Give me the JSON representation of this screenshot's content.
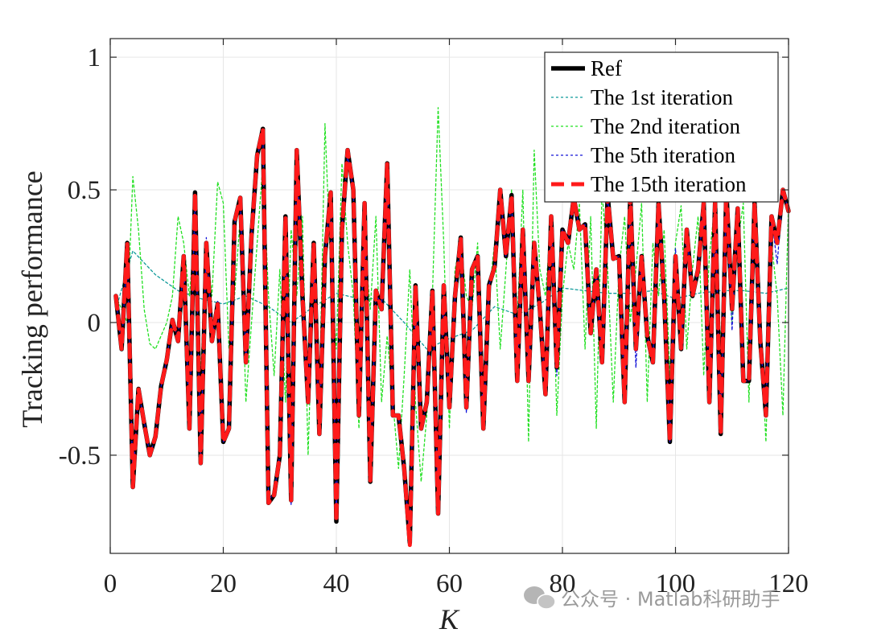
{
  "chart_data": {
    "type": "line",
    "xlabel": "K",
    "ylabel": "Tracking performance",
    "xlim": [
      0,
      120
    ],
    "ylim": [
      -0.87,
      1.07
    ],
    "xticks": [
      0,
      20,
      40,
      60,
      80,
      100,
      120
    ],
    "yticks": [
      -0.5,
      0,
      0.5,
      1
    ],
    "ytick_labels": [
      "-0.5",
      "0",
      "0.5",
      "1"
    ],
    "grid": true,
    "legend_position": "top-right",
    "series": [
      {
        "name": "Ref",
        "color": "#000000",
        "style": "solid",
        "x": [
          1,
          2,
          3,
          4,
          5,
          6,
          7,
          8,
          9,
          10,
          11,
          12,
          13,
          14,
          15,
          16,
          17,
          18,
          19,
          20,
          21,
          22,
          23,
          24,
          25,
          26,
          27,
          28,
          29,
          30,
          31,
          32,
          33,
          34,
          35,
          36,
          37,
          38,
          39,
          40,
          41,
          42,
          43,
          44,
          45,
          46,
          47,
          48,
          49,
          50,
          51,
          52,
          53,
          54,
          55,
          56,
          57,
          58,
          59,
          60,
          61,
          62,
          63,
          64,
          65,
          66,
          67,
          68,
          69,
          70,
          71,
          72,
          73,
          74,
          75,
          76,
          77,
          78,
          79,
          80,
          81,
          82,
          83,
          84,
          85,
          86,
          87,
          88,
          89,
          90,
          91,
          92,
          93,
          94,
          95,
          96,
          97,
          98,
          99,
          100,
          101,
          102,
          103,
          104,
          105,
          106,
          107,
          108,
          109,
          110,
          111,
          112,
          113,
          114,
          115,
          116,
          117,
          118,
          119,
          120
        ],
        "y": [
          0.1,
          -0.1,
          0.3,
          -0.62,
          -0.25,
          -0.38,
          -0.5,
          -0.43,
          -0.24,
          -0.14,
          0.01,
          -0.07,
          0.25,
          -0.4,
          0.49,
          -0.53,
          0.3,
          -0.07,
          0.07,
          -0.45,
          -0.4,
          0.38,
          0.47,
          -0.15,
          0.33,
          0.63,
          0.73,
          -0.68,
          -0.65,
          -0.5,
          0.4,
          -0.67,
          0.65,
          0.1,
          -0.3,
          0.3,
          -0.42,
          0.25,
          0.49,
          -0.75,
          0.35,
          0.65,
          0.5,
          -0.35,
          0.45,
          -0.6,
          0.12,
          0.05,
          0.6,
          -0.35,
          -0.35,
          -0.55,
          -0.83,
          0.14,
          -0.4,
          -0.3,
          0.12,
          -0.72,
          0.14,
          -0.32,
          0.1,
          0.32,
          -0.32,
          0.2,
          0.25,
          -0.4,
          0.14,
          0.21,
          0.5,
          0.25,
          0.48,
          -0.22,
          0.35,
          -0.22,
          0.3,
          0.05,
          -0.27,
          0.4,
          -0.17,
          0.35,
          0.3,
          0.47,
          0.35,
          0.37,
          -0.04,
          0.2,
          -0.15,
          0.48,
          0.24,
          0.25,
          -0.3,
          0.48,
          -0.1,
          0.25,
          -0.05,
          -0.15,
          0.45,
          0.1,
          -0.45,
          0.25,
          -0.1,
          0.35,
          0.1,
          0.2,
          0.45,
          -0.3,
          0.45,
          -0.42,
          0.5,
          0.05,
          0.43,
          -0.22,
          -0.22,
          0.45,
          -0.07,
          -0.35,
          0.4,
          0.3,
          0.5,
          0.42
        ]
      },
      {
        "name": "The 1st iteration",
        "color": "#0e9a9a",
        "style": "dotted",
        "x": [
          1,
          4,
          8,
          12,
          16,
          20,
          24,
          28,
          32,
          36,
          40,
          44,
          48,
          52,
          56,
          60,
          64,
          68,
          72,
          76,
          80,
          84,
          88,
          92,
          96,
          100,
          104,
          108,
          112,
          116,
          120
        ],
        "y": [
          0.05,
          0.27,
          0.18,
          0.12,
          0.09,
          0.07,
          0.1,
          0.06,
          0.0,
          0.06,
          0.11,
          0.09,
          0.09,
          0.0,
          -0.1,
          -0.06,
          -0.03,
          0.06,
          0.03,
          0.07,
          0.13,
          0.12,
          0.11,
          0.11,
          0.12,
          0.09,
          0.11,
          0.12,
          0.12,
          0.11,
          0.13
        ]
      },
      {
        "name": "The 2nd iteration",
        "color": "#22e022",
        "style": "dotted",
        "x": [
          1,
          2,
          3,
          4,
          5,
          6,
          7,
          8,
          9,
          10,
          11,
          12,
          13,
          14,
          15,
          16,
          17,
          18,
          19,
          20,
          21,
          22,
          23,
          24,
          25,
          26,
          27,
          28,
          29,
          30,
          31,
          32,
          33,
          34,
          35,
          36,
          37,
          38,
          39,
          40,
          41,
          42,
          43,
          44,
          45,
          46,
          47,
          48,
          49,
          50,
          51,
          52,
          53,
          54,
          55,
          56,
          57,
          58,
          59,
          60,
          61,
          62,
          63,
          64,
          65,
          66,
          67,
          68,
          69,
          70,
          71,
          72,
          73,
          74,
          75,
          76,
          77,
          78,
          79,
          80,
          81,
          82,
          83,
          84,
          85,
          86,
          87,
          88,
          89,
          90,
          91,
          92,
          93,
          94,
          95,
          96,
          97,
          98,
          99,
          100,
          101,
          102,
          103,
          104,
          105,
          106,
          107,
          108,
          109,
          110,
          111,
          112,
          113,
          114,
          115,
          116,
          117,
          118,
          119,
          120
        ],
        "y": [
          0.1,
          0.05,
          0.0,
          0.55,
          0.35,
          0.05,
          -0.08,
          -0.1,
          -0.05,
          0.0,
          0.1,
          0.4,
          0.3,
          0.1,
          0.35,
          -0.2,
          0.3,
          0.1,
          0.53,
          0.45,
          -0.1,
          0.1,
          0.4,
          -0.3,
          0.0,
          0.3,
          0.6,
          0.1,
          -0.2,
          0.2,
          -0.3,
          0.35,
          0.1,
          0.4,
          -0.5,
          0.2,
          -0.3,
          0.75,
          0.2,
          -0.1,
          0.6,
          0.3,
          0.1,
          -0.4,
          0.3,
          0.05,
          0.4,
          -0.3,
          -0.05,
          -0.3,
          -0.55,
          -0.2,
          0.2,
          -0.3,
          -0.6,
          -0.35,
          0.1,
          0.81,
          0.3,
          -0.4,
          0.2,
          0.3,
          0.1,
          0.05,
          0.3,
          -0.3,
          0.1,
          0.3,
          -0.1,
          0.2,
          0.5,
          0.0,
          0.5,
          -0.45,
          0.65,
          0.2,
          0.1,
          0.4,
          -0.35,
          0.1,
          0.3,
          0.2,
          0.45,
          -0.1,
          0.4,
          -0.4,
          0.5,
          0.2,
          -0.3,
          0.2,
          0.4,
          0.0,
          0.2,
          0.45,
          -0.3,
          0.3,
          0.1,
          0.35,
          -0.2,
          0.3,
          0.44,
          -0.1,
          0.2,
          0.4,
          -0.2,
          0.25,
          0.45,
          -0.1,
          0.5,
          0.0,
          0.3,
          0.45,
          -0.3,
          0.4,
          0.0,
          -0.45,
          0.3,
          0.1,
          -0.35,
          0.45
        ]
      },
      {
        "name": "The 5th iteration",
        "color": "#1414d8",
        "style": "dotted",
        "x": [
          1,
          2,
          3,
          4,
          5,
          6,
          7,
          8,
          9,
          10,
          11,
          12,
          13,
          14,
          15,
          16,
          17,
          18,
          19,
          20,
          21,
          22,
          23,
          24,
          25,
          26,
          27,
          28,
          29,
          30,
          31,
          32,
          33,
          34,
          35,
          36,
          37,
          38,
          39,
          40,
          41,
          42,
          43,
          44,
          45,
          46,
          47,
          48,
          49,
          50,
          51,
          52,
          53,
          54,
          55,
          56,
          57,
          58,
          59,
          60,
          61,
          62,
          63,
          64,
          65,
          66,
          67,
          68,
          69,
          70,
          71,
          72,
          73,
          74,
          75,
          76,
          77,
          78,
          79,
          80,
          81,
          82,
          83,
          84,
          85,
          86,
          87,
          88,
          89,
          90,
          91,
          92,
          93,
          94,
          95,
          96,
          97,
          98,
          99,
          100,
          101,
          102,
          103,
          104,
          105,
          106,
          107,
          108,
          109,
          110,
          111,
          112,
          113,
          114,
          115,
          116,
          117,
          118,
          119,
          120
        ],
        "y": [
          0.1,
          -0.1,
          0.28,
          -0.6,
          -0.26,
          -0.37,
          -0.5,
          -0.43,
          -0.24,
          -0.14,
          0.01,
          -0.06,
          0.24,
          -0.39,
          0.48,
          -0.52,
          0.32,
          -0.07,
          0.08,
          -0.45,
          -0.4,
          0.37,
          0.46,
          -0.14,
          0.33,
          0.62,
          0.72,
          -0.67,
          -0.64,
          -0.5,
          0.39,
          -0.69,
          0.63,
          0.1,
          -0.3,
          0.29,
          -0.42,
          0.25,
          0.48,
          -0.74,
          0.35,
          0.63,
          0.5,
          -0.35,
          0.45,
          -0.6,
          0.12,
          0.05,
          0.6,
          -0.35,
          -0.35,
          -0.55,
          -0.82,
          0.14,
          -0.4,
          -0.3,
          0.12,
          -0.71,
          0.14,
          -0.32,
          0.1,
          0.32,
          -0.34,
          0.2,
          0.25,
          -0.4,
          0.14,
          0.21,
          0.49,
          0.25,
          0.47,
          -0.22,
          0.35,
          -0.22,
          0.3,
          0.05,
          -0.27,
          0.4,
          -0.2,
          0.35,
          0.3,
          0.47,
          0.35,
          0.37,
          -0.04,
          0.2,
          -0.15,
          0.48,
          0.24,
          0.25,
          -0.3,
          0.48,
          -0.17,
          0.25,
          -0.05,
          -0.15,
          0.45,
          0.1,
          -0.45,
          0.28,
          -0.1,
          0.35,
          0.1,
          0.2,
          0.45,
          -0.3,
          0.45,
          -0.42,
          0.5,
          -0.03,
          0.43,
          -0.22,
          -0.22,
          0.45,
          -0.07,
          -0.33,
          0.4,
          0.22,
          0.5,
          0.42
        ]
      },
      {
        "name": "The 15th iteration",
        "color": "#ff1a1a",
        "style": "dashed",
        "x": [
          1,
          2,
          3,
          4,
          5,
          6,
          7,
          8,
          9,
          10,
          11,
          12,
          13,
          14,
          15,
          16,
          17,
          18,
          19,
          20,
          21,
          22,
          23,
          24,
          25,
          26,
          27,
          28,
          29,
          30,
          31,
          32,
          33,
          34,
          35,
          36,
          37,
          38,
          39,
          40,
          41,
          42,
          43,
          44,
          45,
          46,
          47,
          48,
          49,
          50,
          51,
          52,
          53,
          54,
          55,
          56,
          57,
          58,
          59,
          60,
          61,
          62,
          63,
          64,
          65,
          66,
          67,
          68,
          69,
          70,
          71,
          72,
          73,
          74,
          75,
          76,
          77,
          78,
          79,
          80,
          81,
          82,
          83,
          84,
          85,
          86,
          87,
          88,
          89,
          90,
          91,
          92,
          93,
          94,
          95,
          96,
          97,
          98,
          99,
          100,
          101,
          102,
          103,
          104,
          105,
          106,
          107,
          108,
          109,
          110,
          111,
          112,
          113,
          114,
          115,
          116,
          117,
          118,
          119,
          120
        ],
        "y": [
          0.1,
          -0.1,
          0.3,
          -0.62,
          -0.25,
          -0.38,
          -0.5,
          -0.43,
          -0.24,
          -0.14,
          0.01,
          -0.07,
          0.25,
          -0.4,
          0.49,
          -0.53,
          0.3,
          -0.07,
          0.07,
          -0.45,
          -0.4,
          0.38,
          0.47,
          -0.15,
          0.33,
          0.63,
          0.73,
          -0.68,
          -0.65,
          -0.5,
          0.4,
          -0.67,
          0.65,
          0.1,
          -0.3,
          0.3,
          -0.42,
          0.25,
          0.49,
          -0.75,
          0.35,
          0.65,
          0.5,
          -0.35,
          0.45,
          -0.6,
          0.12,
          0.05,
          0.6,
          -0.35,
          -0.35,
          -0.55,
          -0.84,
          0.14,
          -0.4,
          -0.3,
          0.12,
          -0.72,
          0.14,
          -0.32,
          0.1,
          0.32,
          -0.32,
          0.2,
          0.25,
          -0.4,
          0.14,
          0.21,
          0.5,
          0.25,
          0.48,
          -0.22,
          0.35,
          -0.22,
          0.3,
          0.05,
          -0.27,
          0.4,
          -0.17,
          0.35,
          0.3,
          0.47,
          0.35,
          0.37,
          -0.04,
          0.2,
          -0.15,
          0.48,
          0.24,
          0.25,
          -0.3,
          0.48,
          -0.1,
          0.25,
          -0.05,
          -0.15,
          0.45,
          0.1,
          -0.45,
          0.25,
          -0.1,
          0.35,
          0.1,
          0.2,
          0.45,
          -0.3,
          0.45,
          -0.42,
          0.5,
          0.05,
          0.43,
          -0.22,
          -0.22,
          0.45,
          -0.07,
          -0.35,
          0.4,
          0.3,
          0.5,
          0.42
        ]
      }
    ]
  },
  "watermark": {
    "text": "公众号 · Matlab科研助手",
    "icon": "wechat-icon"
  }
}
